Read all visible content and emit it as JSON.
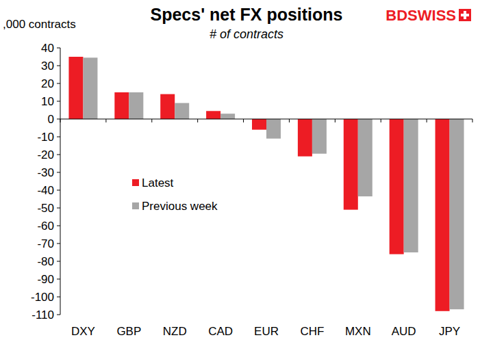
{
  "chart_data": {
    "type": "bar",
    "title": "Specs' net FX positions",
    "subtitle": "# of contracts",
    "y_label": ",000 contracts",
    "annotations": [
      "BDSWISS"
    ],
    "categories": [
      "DXY",
      "GBP",
      "NZD",
      "CAD",
      "EUR",
      "CHF",
      "MXN",
      "AUD",
      "JPY"
    ],
    "series": [
      {
        "name": "Latest",
        "color": "#ed1c24",
        "values": [
          35,
          15,
          14,
          4.5,
          -6,
          -21,
          -51,
          -76,
          -108
        ]
      },
      {
        "name": "Previous week",
        "color": "#a6a6a6",
        "values": [
          34.5,
          15,
          9,
          3,
          -11,
          -19.5,
          -43.5,
          -75,
          -107
        ]
      }
    ],
    "ylim": [
      -110,
      40
    ],
    "yticks": [
      -110,
      -100,
      -90,
      -80,
      -70,
      -60,
      -50,
      -40,
      -30,
      -20,
      -10,
      0,
      10,
      20,
      30,
      40
    ],
    "grid": false,
    "legend": "left"
  }
}
